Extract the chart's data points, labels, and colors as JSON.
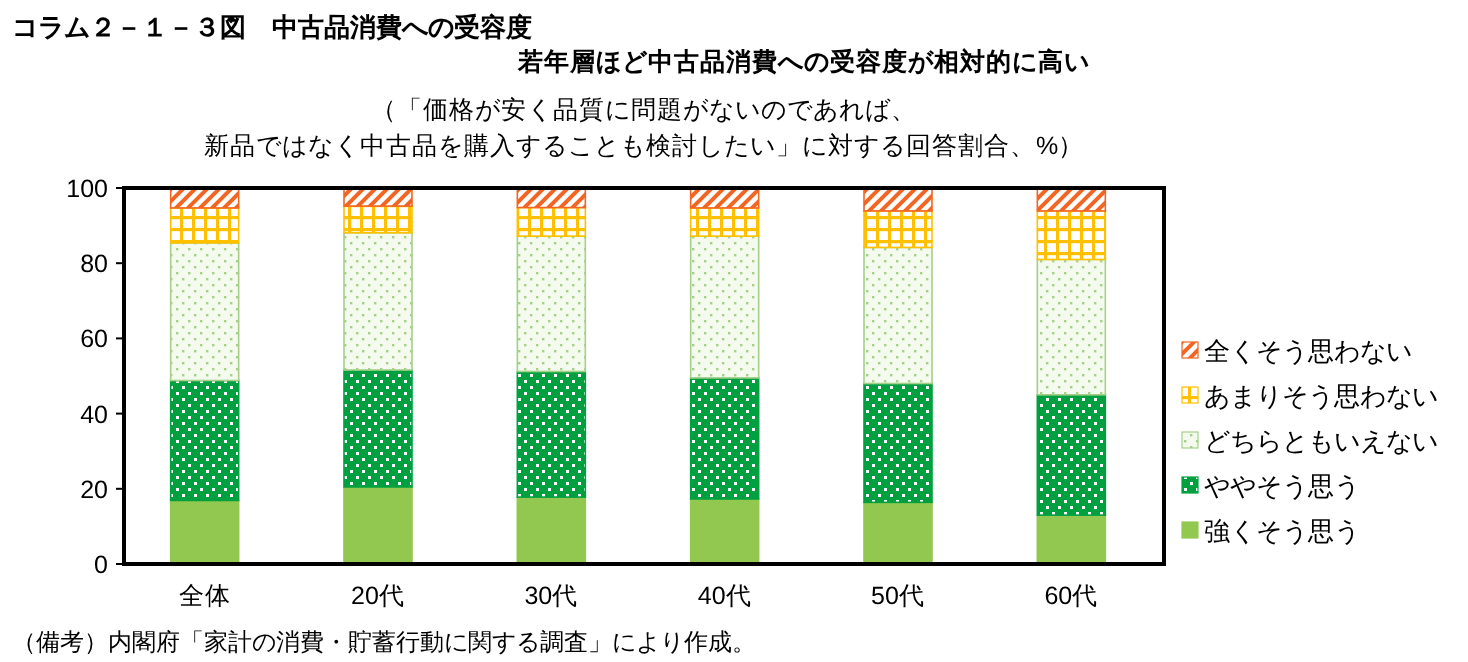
{
  "chart_data": {
    "type": "bar",
    "stacked": true,
    "title": "コラム２－１－３図　中古品消費への受容度",
    "subtitle": "若年層ほど中古品消費への受容度が相対的に高い",
    "ylabel": "（「価格が安く品質に問題がないのであれば、新品ではなく中古品を購入することも検討したい」に対する回答割合、%）",
    "annotations": [
      "（備考）内閣府「家計の消費・貯蓄行動に関する調査」により作成。"
    ],
    "categories": [
      "全体",
      "20代",
      "30代",
      "40代",
      "50代",
      "60代"
    ],
    "series": [
      {
        "name": "強くそう思う",
        "color": "#92c84f",
        "values": [
          16.9,
          20.5,
          17.8,
          17.3,
          16.4,
          13.0
        ]
      },
      {
        "name": "ややそう思う",
        "color": "#00a040",
        "values": [
          31.9,
          31.1,
          33.4,
          32.2,
          31.6,
          32.0
        ]
      },
      {
        "name": "どちらともいえない",
        "color": "#a6d08a",
        "values": [
          36.6,
          36.5,
          36.0,
          37.7,
          36.2,
          36.0
        ]
      },
      {
        "name": "あまりそう思わない",
        "color": "#ffc000",
        "values": [
          9.3,
          7.1,
          7.6,
          7.5,
          9.7,
          12.9
        ]
      },
      {
        "name": "全くそう思わない",
        "color": "#f26522",
        "values": [
          5.3,
          4.8,
          5.2,
          5.3,
          6.1,
          6.1
        ]
      }
    ],
    "ylim": [
      0,
      100
    ],
    "yticks": [
      0,
      20,
      40,
      60,
      80,
      100
    ],
    "legend": "right"
  }
}
